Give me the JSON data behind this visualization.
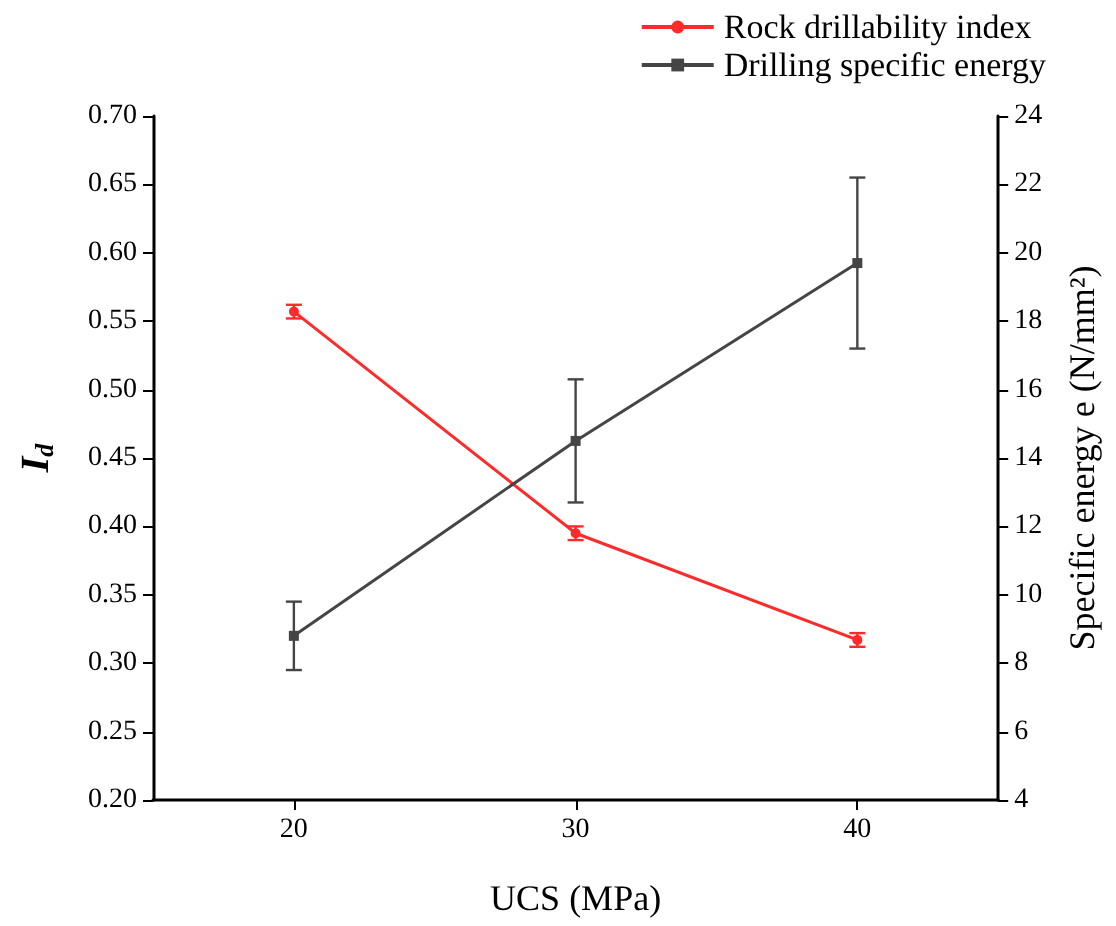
{
  "chart_data": {
    "type": "line",
    "xlabel": "UCS (MPa)",
    "ylabel": "I$_{d}$",
    "y2label": "Specific energy e (N/mm²)",
    "x": [
      20,
      30,
      40
    ],
    "series": [
      {
        "name": "Rock drillability index",
        "color": "#ff2a2a",
        "values": [
          0.557,
          0.395,
          0.317
        ],
        "errors": [
          0.005,
          0.005,
          0.005
        ],
        "marker": "circle"
      },
      {
        "name": "Drilling specific energy",
        "color": "#454545",
        "values": [
          8.8,
          14.5,
          19.7
        ],
        "errors": [
          1.0,
          1.8,
          2.5
        ],
        "marker": "square",
        "axis": "y2"
      }
    ],
    "xlim": [
      15,
      45
    ],
    "xticks": [
      20,
      30,
      40
    ],
    "ylim": [
      0.2,
      0.7
    ],
    "yticks": [
      {
        "value": 0.2,
        "label": "0.20"
      },
      0.25,
      {
        "value": 0.3,
        "label": "0.30"
      },
      0.35,
      {
        "value": 0.4,
        "label": "0.40"
      },
      0.45,
      {
        "value": 0.5,
        "label": "0.50"
      },
      0.55,
      {
        "value": 0.6,
        "label": "0.60"
      },
      0.65,
      {
        "value": 0.7,
        "label": "0.70"
      }
    ],
    "y2lim": [
      4,
      24
    ],
    "y2ticks": [
      4,
      6,
      8,
      10,
      12,
      14,
      16,
      18,
      20,
      22,
      24
    ],
    "grid": false,
    "legend": "top right",
    "line_style": "solid"
  }
}
